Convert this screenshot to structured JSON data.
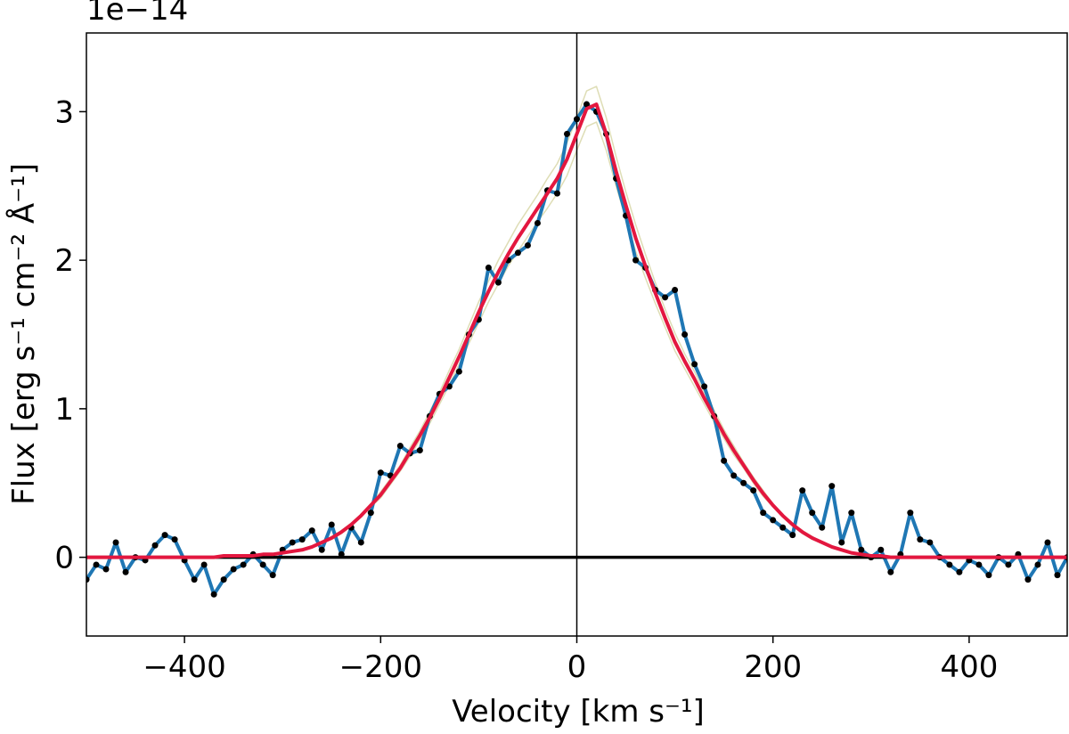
{
  "chart_data": {
    "type": "line",
    "offset_text": "1e−14",
    "xlabel": "Velocity [km s⁻¹]",
    "ylabel": "Flux [erg s⁻¹ cm⁻² Å⁻¹]",
    "xlim": [
      -500,
      500
    ],
    "ylim": [
      -0.53,
      3.53
    ],
    "xticks": [
      {
        "value": -400,
        "label": "−400"
      },
      {
        "value": -200,
        "label": "−200"
      },
      0,
      200,
      400
    ],
    "yticks": [
      0,
      1,
      2,
      3
    ],
    "hlines": [
      0
    ],
    "vlines": [
      0
    ],
    "x": [
      -500,
      -490,
      -480,
      -470,
      -460,
      -450,
      -440,
      -430,
      -420,
      -410,
      -400,
      -390,
      -380,
      -370,
      -360,
      -350,
      -340,
      -330,
      -320,
      -310,
      -300,
      -290,
      -280,
      -270,
      -260,
      -250,
      -240,
      -230,
      -220,
      -210,
      -200,
      -190,
      -180,
      -170,
      -160,
      -150,
      -140,
      -130,
      -120,
      -110,
      -100,
      -90,
      -80,
      -70,
      -60,
      -50,
      -40,
      -30,
      -20,
      -10,
      0,
      10,
      20,
      30,
      40,
      50,
      60,
      70,
      80,
      90,
      100,
      110,
      120,
      130,
      140,
      150,
      160,
      170,
      180,
      190,
      200,
      210,
      220,
      230,
      240,
      250,
      260,
      270,
      280,
      290,
      300,
      310,
      320,
      330,
      340,
      350,
      360,
      370,
      380,
      390,
      400,
      410,
      420,
      430,
      440,
      450,
      460,
      470,
      480,
      490,
      500
    ],
    "series": [
      {
        "color": "#b5b35c",
        "alpha": 0.45,
        "width": 1.5,
        "values": [
          0,
          0,
          0,
          0,
          0,
          0,
          0,
          0,
          0,
          0,
          0,
          0,
          0,
          0,
          0.01,
          0.01,
          0.01,
          0.01,
          0.02,
          0.02,
          0.03,
          0.04,
          0.05,
          0.07,
          0.1,
          0.14,
          0.18,
          0.23,
          0.29,
          0.36,
          0.44,
          0.53,
          0.62,
          0.74,
          0.85,
          0.98,
          1.11,
          1.26,
          1.4,
          1.56,
          1.72,
          1.86,
          2.0,
          2.12,
          2.24,
          2.34,
          2.44,
          2.55,
          2.65,
          2.79,
          2.96,
          3.14,
          3.17,
          2.96,
          2.7,
          2.46,
          2.24,
          2.04,
          1.85,
          1.67,
          1.51,
          1.37,
          1.25,
          1.11,
          0.99,
          0.86,
          0.75,
          0.64,
          0.54,
          0.45,
          0.36,
          0.29,
          0.23,
          0.18,
          0.14,
          0.1,
          0.07,
          0.05,
          0.03,
          0.02,
          0.01,
          0.01,
          0,
          0,
          0,
          0,
          0,
          0,
          0,
          0,
          0,
          0,
          0,
          0,
          0,
          0,
          0,
          0,
          0,
          0,
          0
        ]
      },
      {
        "color": "#b5b35c",
        "alpha": 0.45,
        "width": 1.5,
        "values": [
          0,
          0,
          0,
          0,
          0,
          0,
          0,
          0,
          0,
          0,
          0,
          0,
          0,
          0,
          0.01,
          0.01,
          0.01,
          0.01,
          0.02,
          0.02,
          0.03,
          0.04,
          0.05,
          0.07,
          0.1,
          0.12,
          0.16,
          0.21,
          0.27,
          0.34,
          0.4,
          0.49,
          0.58,
          0.68,
          0.79,
          0.9,
          1.03,
          1.16,
          1.3,
          1.44,
          1.58,
          1.72,
          1.84,
          1.96,
          2.06,
          2.16,
          2.26,
          2.35,
          2.45,
          2.57,
          2.74,
          2.9,
          2.93,
          2.74,
          2.5,
          2.28,
          2.06,
          1.88,
          1.71,
          1.55,
          1.39,
          1.27,
          1.15,
          1.03,
          0.91,
          0.8,
          0.69,
          0.6,
          0.5,
          0.41,
          0.34,
          0.27,
          0.21,
          0.16,
          0.12,
          0.1,
          0.07,
          0.05,
          0.03,
          0.02,
          0.01,
          0.01,
          0,
          0,
          0,
          0,
          0,
          0,
          0,
          0,
          0,
          0,
          0,
          0,
          0,
          0,
          0,
          0,
          0,
          0,
          0
        ]
      },
      {
        "color": "#1f77b4",
        "alpha": 1,
        "width": 4,
        "markers": "#000000",
        "values": [
          -0.15,
          -0.05,
          -0.08,
          0.1,
          -0.1,
          0.0,
          -0.02,
          0.08,
          0.15,
          0.12,
          -0.02,
          -0.15,
          -0.05,
          -0.25,
          -0.15,
          -0.08,
          -0.05,
          0.02,
          -0.05,
          -0.12,
          0.05,
          0.1,
          0.12,
          0.18,
          0.05,
          0.22,
          0.02,
          0.2,
          0.1,
          0.3,
          0.57,
          0.55,
          0.75,
          0.7,
          0.72,
          0.95,
          1.1,
          1.15,
          1.25,
          1.5,
          1.6,
          1.95,
          1.85,
          2.0,
          2.05,
          2.1,
          2.25,
          2.47,
          2.45,
          2.85,
          2.95,
          3.05,
          3.0,
          2.85,
          2.55,
          2.3,
          2.0,
          1.95,
          1.8,
          1.75,
          1.8,
          1.5,
          1.3,
          1.15,
          0.95,
          0.65,
          0.55,
          0.5,
          0.45,
          0.3,
          0.25,
          0.2,
          0.15,
          0.45,
          0.3,
          0.2,
          0.48,
          0.1,
          0.3,
          0.05,
          0.0,
          0.05,
          -0.1,
          0.02,
          0.3,
          0.12,
          0.1,
          0.0,
          -0.05,
          -0.1,
          -0.02,
          -0.05,
          -0.12,
          0.0,
          -0.05,
          0.02,
          -0.15,
          -0.05,
          0.1,
          -0.12,
          0.0
        ]
      },
      {
        "color": "#e3173f",
        "alpha": 1,
        "width": 4,
        "values": [
          0,
          0,
          0,
          0,
          0,
          0,
          0,
          0,
          0,
          0,
          0,
          0,
          0,
          0,
          0.01,
          0.01,
          0.01,
          0.01,
          0.02,
          0.02,
          0.03,
          0.04,
          0.05,
          0.07,
          0.1,
          0.13,
          0.17,
          0.22,
          0.28,
          0.35,
          0.42,
          0.51,
          0.6,
          0.71,
          0.82,
          0.94,
          1.07,
          1.21,
          1.35,
          1.5,
          1.65,
          1.79,
          1.92,
          2.04,
          2.15,
          2.25,
          2.35,
          2.45,
          2.55,
          2.68,
          2.85,
          3.02,
          3.05,
          2.85,
          2.6,
          2.37,
          2.15,
          1.96,
          1.78,
          1.61,
          1.45,
          1.32,
          1.2,
          1.07,
          0.95,
          0.83,
          0.72,
          0.62,
          0.52,
          0.43,
          0.35,
          0.28,
          0.22,
          0.17,
          0.13,
          0.1,
          0.07,
          0.05,
          0.03,
          0.02,
          0.01,
          0.01,
          0,
          0,
          0,
          0,
          0,
          0,
          0,
          0,
          0,
          0,
          0,
          0,
          0,
          0,
          0,
          0,
          0,
          0,
          0
        ]
      }
    ]
  }
}
